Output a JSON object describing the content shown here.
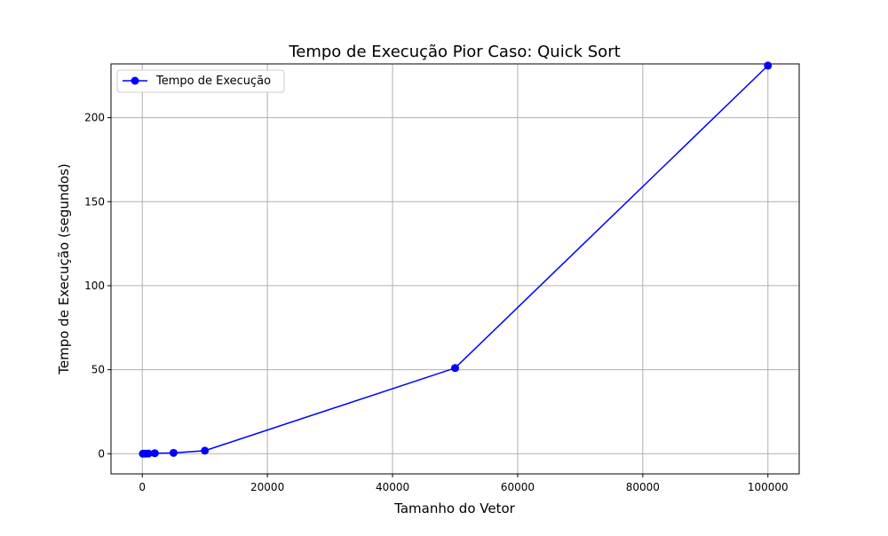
{
  "chart_data": {
    "type": "line",
    "title": "Tempo de Execução Pior Caso: Quick Sort",
    "xlabel": "Tamanho do Vetor",
    "ylabel": "Tempo de Execução (segundos)",
    "xlim": [
      -5000,
      105000
    ],
    "ylim": [
      -12,
      232
    ],
    "xticks": [
      0,
      20000,
      40000,
      60000,
      80000,
      100000
    ],
    "yticks": [
      0,
      50,
      100,
      150,
      200
    ],
    "grid": true,
    "legend_position": "upper-left",
    "series": [
      {
        "name": "Tempo de Execução",
        "color": "#0000ff",
        "marker": "circle",
        "x": [
          100,
          500,
          1000,
          2000,
          5000,
          10000,
          50000,
          100000
        ],
        "y": [
          0.0,
          0.02,
          0.08,
          0.3,
          0.5,
          1.8,
          51,
          231
        ]
      }
    ]
  }
}
